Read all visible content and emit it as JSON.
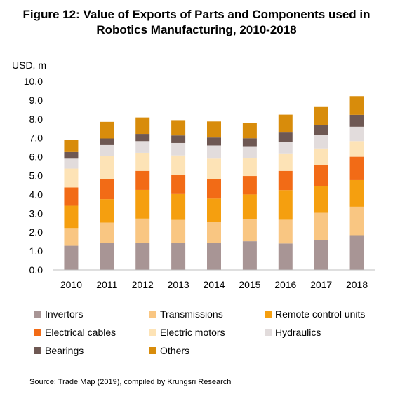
{
  "title_lines": [
    "Figure 12: Value of Exports of Parts and Components used in",
    "Robotics Manufacturing, 2010-2018"
  ],
  "source": "Source: Trade Map (2019), compiled by Krungsri Research",
  "chart_data": {
    "type": "bar",
    "stacked": true,
    "ylabel": "USD, m",
    "ylim": [
      0,
      10
    ],
    "yticks": [
      "0.0",
      "1.0",
      "2.0",
      "3.0",
      "4.0",
      "5.0",
      "6.0",
      "7.0",
      "8.0",
      "9.0",
      "10.0"
    ],
    "grid": false,
    "legend_position": "bottom",
    "categories": [
      "2010",
      "2011",
      "2012",
      "2013",
      "2014",
      "2015",
      "2016",
      "2017",
      "2018"
    ],
    "series": [
      {
        "name": "Invertors",
        "color": "#a89595",
        "values": [
          1.28,
          1.45,
          1.45,
          1.44,
          1.44,
          1.52,
          1.4,
          1.58,
          1.84
        ]
      },
      {
        "name": "Transmissions",
        "color": "#f9c682",
        "values": [
          0.94,
          1.06,
          1.27,
          1.21,
          1.12,
          1.18,
          1.26,
          1.45,
          1.51
        ]
      },
      {
        "name": "Remote control units",
        "color": "#f59f0f",
        "values": [
          1.18,
          1.24,
          1.52,
          1.37,
          1.22,
          1.3,
          1.57,
          1.4,
          1.41
        ]
      },
      {
        "name": "Electrical cables",
        "color": "#f26b16",
        "values": [
          0.97,
          1.08,
          1.01,
          1.0,
          1.03,
          0.98,
          1.02,
          1.13,
          1.24
        ]
      },
      {
        "name": "Electric motors",
        "color": "#fde3b6",
        "values": [
          1.0,
          1.21,
          0.96,
          1.05,
          1.09,
          0.93,
          0.93,
          0.88,
          0.83
        ]
      },
      {
        "name": "Hydraulics",
        "color": "#e2dcdc",
        "values": [
          0.53,
          0.58,
          0.62,
          0.66,
          0.7,
          0.65,
          0.62,
          0.73,
          0.76
        ]
      },
      {
        "name": "Bearings",
        "color": "#6e5853",
        "values": [
          0.35,
          0.35,
          0.38,
          0.4,
          0.42,
          0.42,
          0.52,
          0.5,
          0.63
        ]
      },
      {
        "name": "Others",
        "color": "#d88c0b",
        "values": [
          0.63,
          0.88,
          0.87,
          0.81,
          0.85,
          0.82,
          0.91,
          1.0,
          0.99
        ]
      }
    ]
  }
}
